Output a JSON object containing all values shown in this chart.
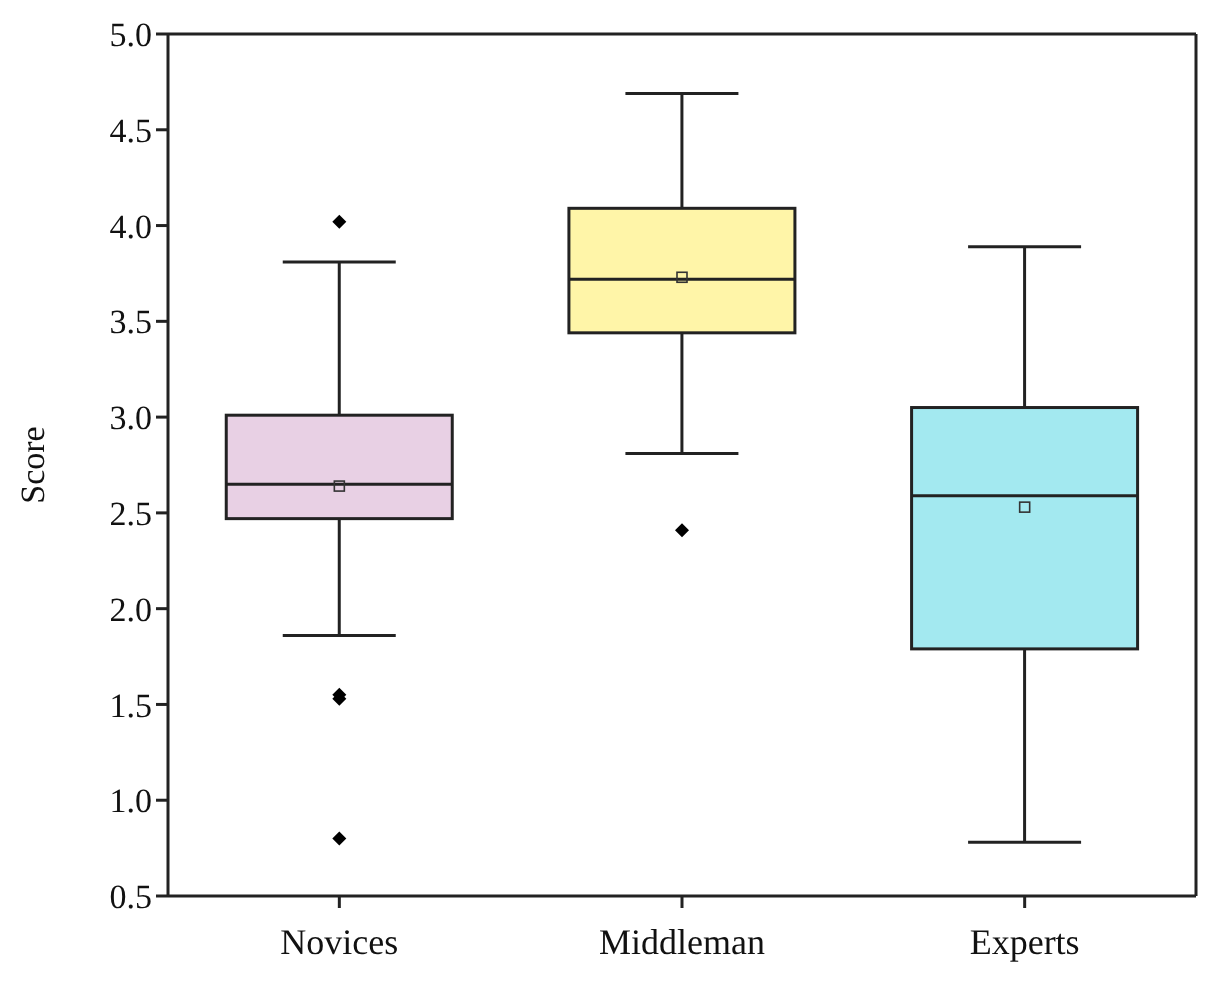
{
  "chart_data": {
    "type": "box",
    "ylabel": "Score",
    "categories": [
      "Novices",
      "Middleman",
      "Experts"
    ],
    "colors": [
      "#e8d0e4",
      "#fff5a8",
      "#a3e9f0"
    ],
    "boxes": [
      {
        "low": 1.86,
        "q1": 2.47,
        "median": 2.65,
        "q3": 3.01,
        "high": 3.81,
        "mean": 2.64,
        "outliers": [
          4.02,
          1.55,
          1.53,
          0.8
        ]
      },
      {
        "low": 2.81,
        "q1": 3.44,
        "median": 3.72,
        "q3": 4.09,
        "high": 4.69,
        "mean": 3.73,
        "outliers": [
          2.41
        ]
      },
      {
        "low": 0.78,
        "q1": 1.79,
        "median": 2.59,
        "q3": 3.05,
        "high": 3.89,
        "mean": 2.53
      }
    ],
    "ylim": [
      0.5,
      5.0
    ],
    "yticks": [
      {
        "value": 0.5,
        "label": "0.5"
      },
      {
        "value": 1,
        "label": "1.0"
      },
      {
        "value": 1.5,
        "label": "1.5"
      },
      {
        "value": 2,
        "label": "2.0"
      },
      {
        "value": 2.5,
        "label": "2.5"
      },
      {
        "value": 3,
        "label": "3.0"
      },
      {
        "value": 3.5,
        "label": "3.5"
      },
      {
        "value": 4,
        "label": "4.0"
      },
      {
        "value": 4.5,
        "label": "4.5"
      },
      {
        "value": 5,
        "label": "5.0"
      }
    ]
  }
}
